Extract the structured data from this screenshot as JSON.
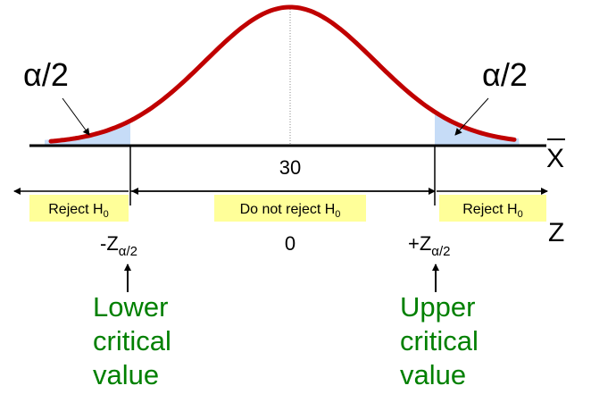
{
  "colors": {
    "curve": "#c00000",
    "tail_fill": "#c6dcf7",
    "region_box": "#ffff99",
    "green_text": "#008000",
    "axis": "#000000"
  },
  "tail_labels": {
    "left": "α/2",
    "right": "α/2"
  },
  "xbar_axis": {
    "label": "X",
    "center_value": "30"
  },
  "z_axis": {
    "label": "Z",
    "lower": "-Z",
    "center_value": "0",
    "upper": "+Z",
    "subscript": "α/2"
  },
  "regions": {
    "left": {
      "text": "Reject H",
      "sub": "0"
    },
    "middle": {
      "text": "Do not reject H",
      "sub": "0"
    },
    "right": {
      "text": "Reject H",
      "sub": "0"
    }
  },
  "annotations": {
    "lower": [
      "Lower",
      "critical",
      "value"
    ],
    "upper": [
      "Upper",
      "critical",
      "value"
    ]
  }
}
